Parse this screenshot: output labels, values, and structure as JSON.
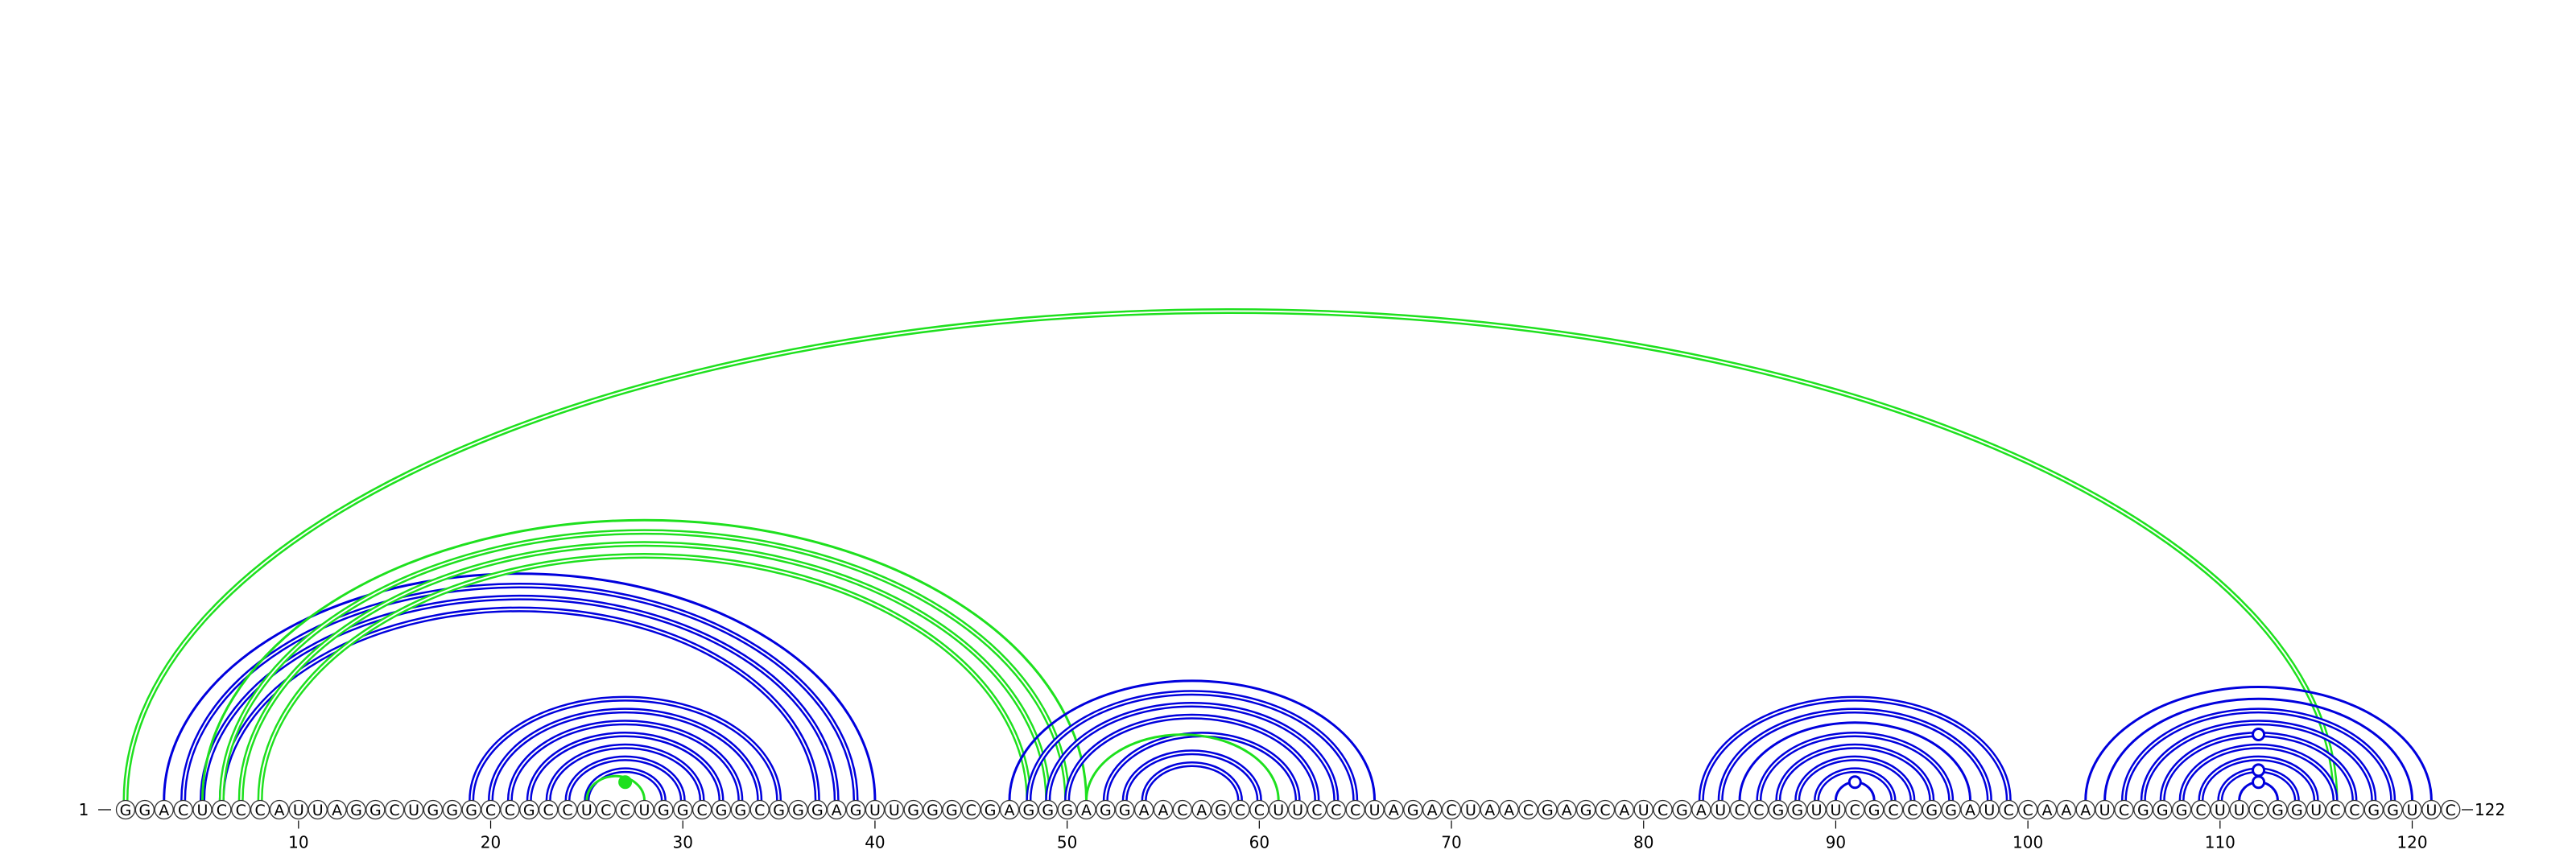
{
  "sequence": "GGACUCCCAUUAGGCUGGGCCGCCUCCUGGCGGCGGGAGUUGGGCGAGGGAGGAACAGCCUUCCCUAGACUAACGAGCAUCGAUCCGGUUCGCCGGAUCCAAAUCGGGCUUCGGUCCGGUUC",
  "start_label": "1",
  "end_label": "122",
  "axis_ticks": [
    "10",
    "20",
    "30",
    "40",
    "50",
    "60",
    "70",
    "80",
    "90",
    "100",
    "110",
    "120"
  ],
  "colors": {
    "blue": "#0000dd",
    "green": "#1ee01e",
    "circle_stroke": "#333333"
  },
  "arcs": [
    {
      "i": 1,
      "j": 116,
      "color": "green",
      "style": "double"
    },
    {
      "i": 3,
      "j": 40,
      "color": "blue",
      "style": "single"
    },
    {
      "i": 4,
      "j": 39,
      "color": "blue",
      "style": "double"
    },
    {
      "i": 5,
      "j": 38,
      "color": "blue",
      "style": "double"
    },
    {
      "i": 6,
      "j": 37,
      "color": "blue",
      "style": "double"
    },
    {
      "i": 5,
      "j": 51,
      "color": "green",
      "style": "single"
    },
    {
      "i": 6,
      "j": 50,
      "color": "green",
      "style": "double"
    },
    {
      "i": 7,
      "j": 49,
      "color": "green",
      "style": "double"
    },
    {
      "i": 8,
      "j": 48,
      "color": "green",
      "style": "double"
    },
    {
      "i": 19,
      "j": 35,
      "color": "blue",
      "style": "double"
    },
    {
      "i": 20,
      "j": 34,
      "color": "blue",
      "style": "double"
    },
    {
      "i": 21,
      "j": 33,
      "color": "blue",
      "style": "double"
    },
    {
      "i": 22,
      "j": 32,
      "color": "blue",
      "style": "double"
    },
    {
      "i": 23,
      "j": 31,
      "color": "blue",
      "style": "double"
    },
    {
      "i": 24,
      "j": 30,
      "color": "blue",
      "style": "double"
    },
    {
      "i": 25,
      "j": 29,
      "color": "blue",
      "style": "double"
    },
    {
      "i": 25,
      "j": 28,
      "color": "green",
      "style": "single"
    },
    {
      "i": 47,
      "j": 66,
      "color": "blue",
      "style": "single"
    },
    {
      "i": 48,
      "j": 65,
      "color": "blue",
      "style": "double"
    },
    {
      "i": 49,
      "j": 64,
      "color": "blue",
      "style": "double"
    },
    {
      "i": 50,
      "j": 63,
      "color": "blue",
      "style": "double"
    },
    {
      "i": 52,
      "j": 62,
      "color": "blue",
      "style": "double"
    },
    {
      "i": 51,
      "j": 61,
      "color": "green",
      "style": "single"
    },
    {
      "i": 53,
      "j": 60,
      "color": "blue",
      "style": "double"
    },
    {
      "i": 54,
      "j": 59,
      "color": "blue",
      "style": "double"
    },
    {
      "i": 83,
      "j": 99,
      "color": "blue",
      "style": "double"
    },
    {
      "i": 84,
      "j": 98,
      "color": "blue",
      "style": "double"
    },
    {
      "i": 85,
      "j": 97,
      "color": "blue",
      "style": "single"
    },
    {
      "i": 86,
      "j": 96,
      "color": "blue",
      "style": "double"
    },
    {
      "i": 87,
      "j": 95,
      "color": "blue",
      "style": "double"
    },
    {
      "i": 88,
      "j": 94,
      "color": "blue",
      "style": "double"
    },
    {
      "i": 89,
      "j": 93,
      "color": "blue",
      "style": "double"
    },
    {
      "i": 90,
      "j": 92,
      "color": "blue",
      "style": "single"
    },
    {
      "i": 103,
      "j": 121,
      "color": "blue",
      "style": "single"
    },
    {
      "i": 104,
      "j": 120,
      "color": "blue",
      "style": "single"
    },
    {
      "i": 105,
      "j": 119,
      "color": "blue",
      "style": "double"
    },
    {
      "i": 106,
      "j": 118,
      "color": "blue",
      "style": "double"
    },
    {
      "i": 107,
      "j": 117,
      "color": "blue",
      "style": "double"
    },
    {
      "i": 108,
      "j": 116,
      "color": "blue",
      "style": "double"
    },
    {
      "i": 109,
      "j": 115,
      "color": "blue",
      "style": "double"
    },
    {
      "i": 110,
      "j": 114,
      "color": "blue",
      "style": "double"
    },
    {
      "i": 111,
      "j": 113,
      "color": "blue",
      "style": "single"
    }
  ],
  "markers": [
    {
      "i": 26,
      "j": 28,
      "color": "green",
      "filled": true
    },
    {
      "i": 90,
      "j": 92,
      "color": "blue",
      "filled": false
    },
    {
      "i": 111,
      "j": 113,
      "color": "blue",
      "filled": false
    },
    {
      "i": 110,
      "j": 114,
      "color": "blue",
      "filled": false
    },
    {
      "i": 107,
      "j": 117,
      "color": "blue",
      "filled": false
    }
  ]
}
